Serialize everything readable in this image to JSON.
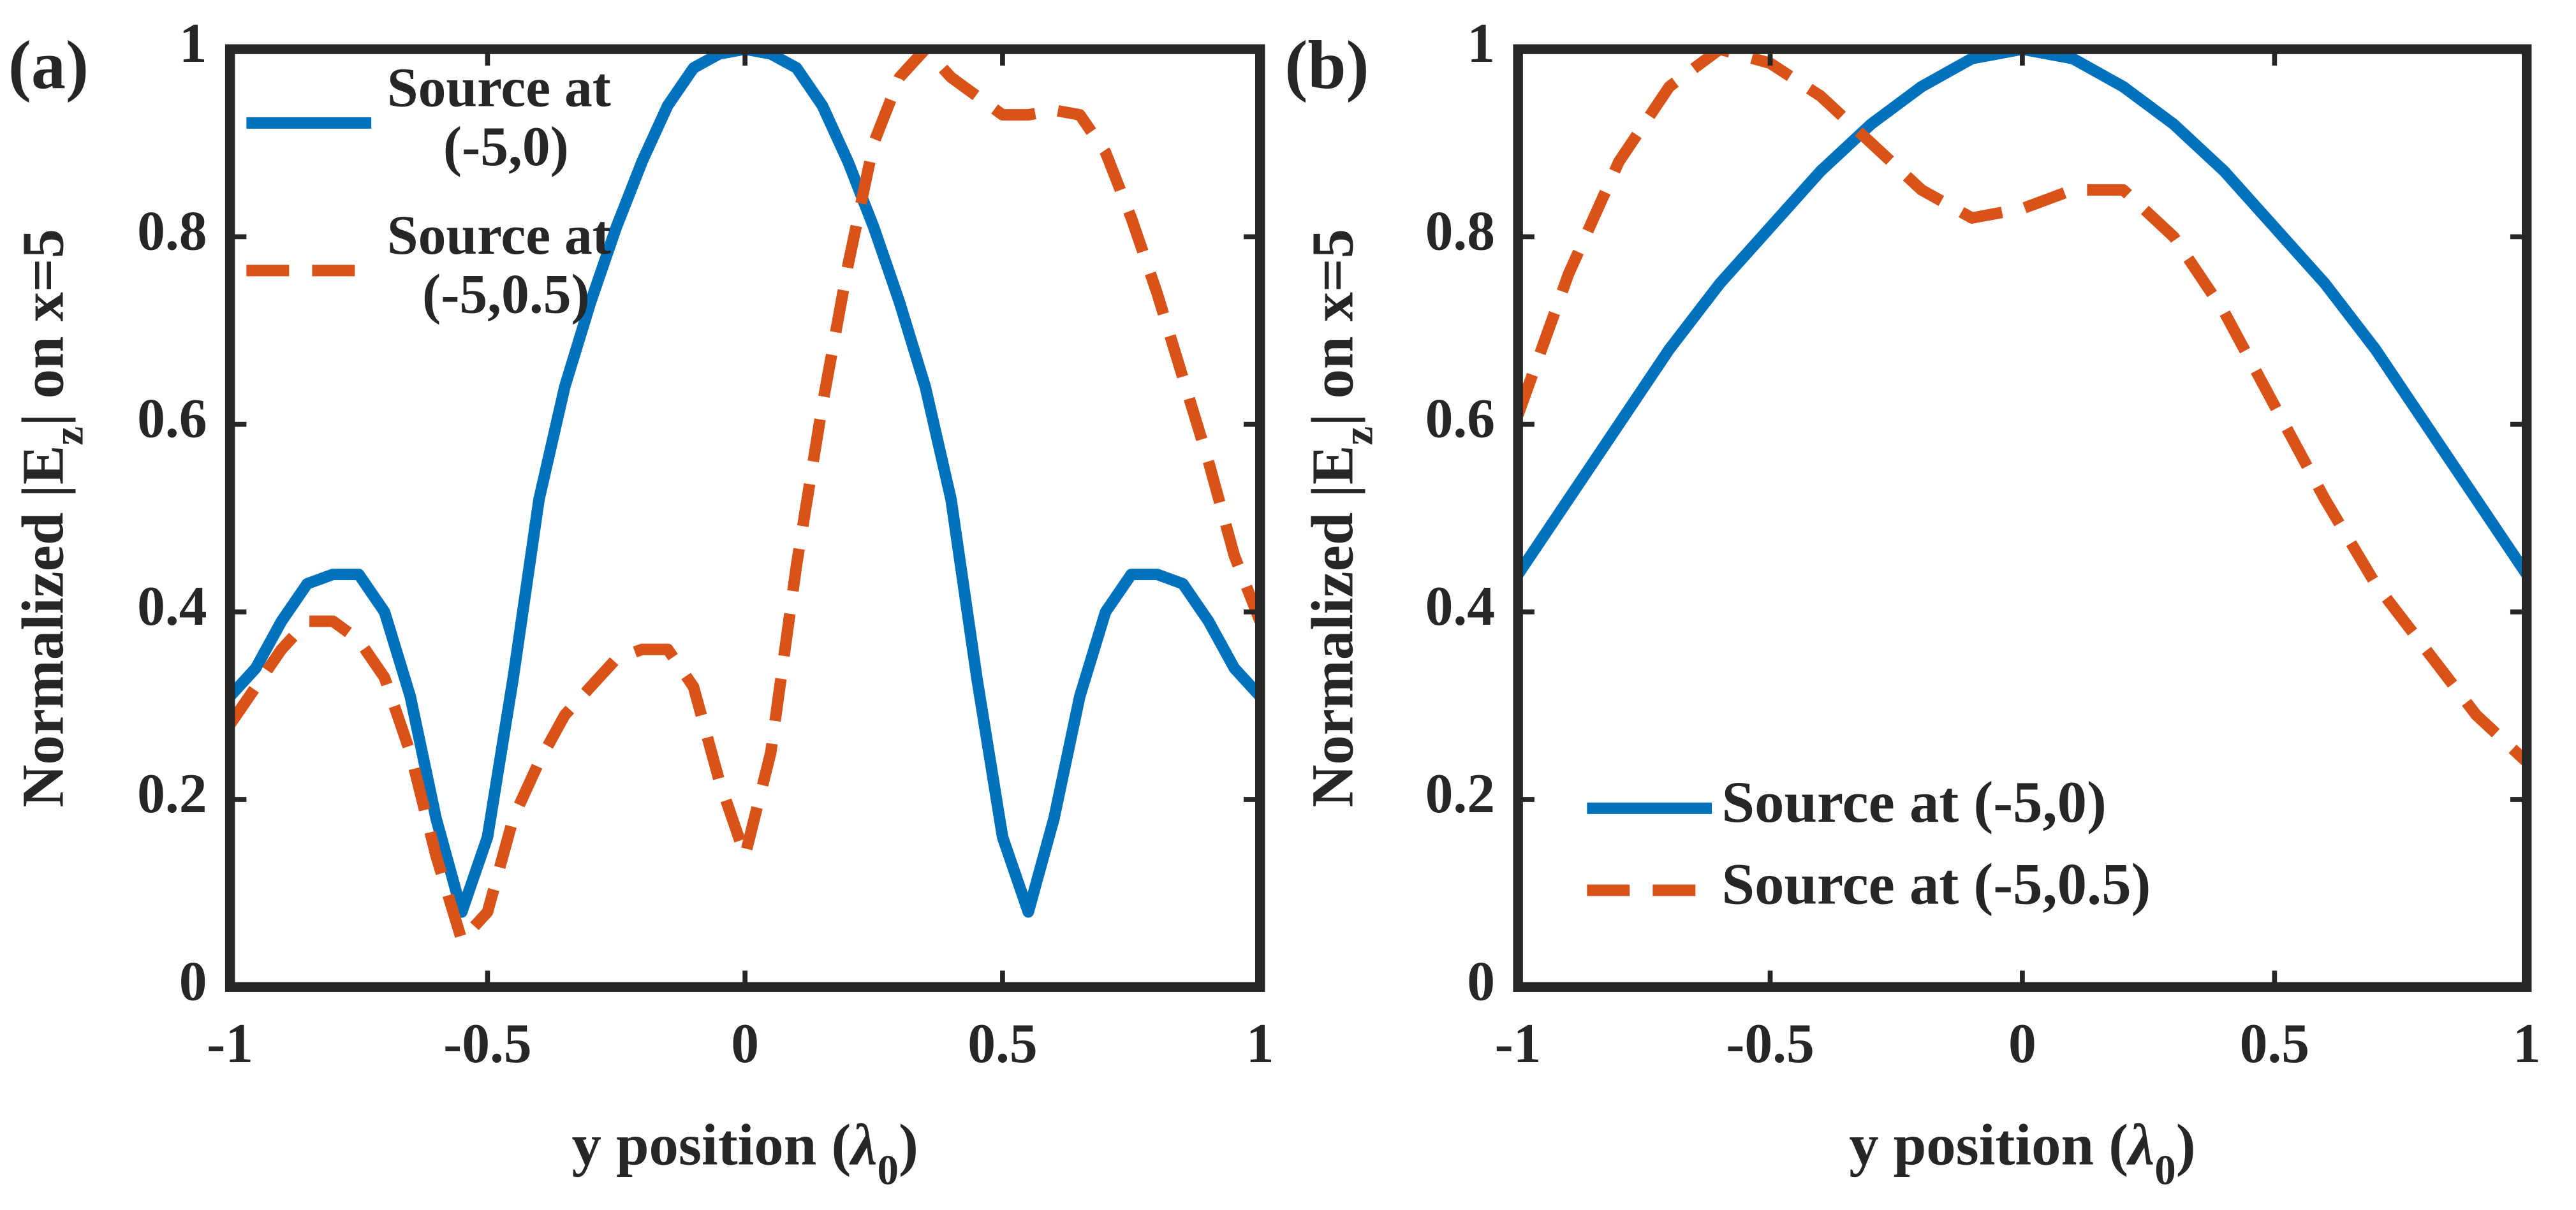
{
  "chart_data": [
    {
      "type": "line",
      "panel": "(a)",
      "ylabel": [
        "Normalized |E",
        "z",
        "| on x=5"
      ],
      "xlabel": [
        "y position (",
        "λ",
        "0",
        ")"
      ],
      "xlim": [
        -1,
        1
      ],
      "ylim": [
        0,
        1
      ],
      "xticks": [
        -1,
        -0.5,
        0,
        0.5,
        1
      ],
      "yticks": [
        0,
        0.2,
        0.4,
        0.6,
        0.8,
        1
      ],
      "legend": "upper left",
      "x": [
        -1,
        -0.95,
        -0.9,
        -0.85,
        -0.8,
        -0.75,
        -0.7,
        -0.65,
        -0.6,
        -0.55,
        -0.5,
        -0.45,
        -0.4,
        -0.35,
        -0.3,
        -0.25,
        -0.2,
        -0.15,
        -0.1,
        -0.05,
        0,
        0.05,
        0.1,
        0.15,
        0.2,
        0.25,
        0.3,
        0.35,
        0.4,
        0.45,
        0.5,
        0.55,
        0.6,
        0.65,
        0.7,
        0.75,
        0.8,
        0.85,
        0.9,
        0.95,
        1
      ],
      "series": [
        {
          "name": "Source at (-5,0)",
          "color": "#0072bd",
          "dash": false,
          "values": [
            0.31,
            0.34,
            0.39,
            0.43,
            0.44,
            0.44,
            0.4,
            0.31,
            0.18,
            0.08,
            0.16,
            0.33,
            0.52,
            0.64,
            0.73,
            0.81,
            0.88,
            0.94,
            0.98,
            0.995,
            1,
            0.995,
            0.98,
            0.94,
            0.88,
            0.81,
            0.73,
            0.64,
            0.52,
            0.33,
            0.16,
            0.08,
            0.18,
            0.31,
            0.4,
            0.44,
            0.44,
            0.43,
            0.39,
            0.34,
            0.31
          ]
        },
        {
          "name": "Source at (-5,0.5)",
          "color": "#d95319",
          "dash": true,
          "values": [
            0.28,
            0.32,
            0.36,
            0.39,
            0.39,
            0.37,
            0.33,
            0.25,
            0.14,
            0.05,
            0.08,
            0.18,
            0.24,
            0.29,
            0.32,
            0.35,
            0.36,
            0.36,
            0.32,
            0.22,
            0.14,
            0.25,
            0.45,
            0.62,
            0.77,
            0.9,
            0.97,
            1.0,
            0.97,
            0.95,
            0.93,
            0.93,
            0.935,
            0.93,
            0.89,
            0.82,
            0.74,
            0.65,
            0.56,
            0.46,
            0.39
          ]
        }
      ]
    },
    {
      "type": "line",
      "panel": "(b)",
      "ylabel": [
        "Normalized |E",
        "z",
        "| on x=5"
      ],
      "xlabel": [
        "y position (",
        "λ",
        "0",
        ")"
      ],
      "xlim": [
        -1,
        1
      ],
      "ylim": [
        0,
        1
      ],
      "xticks": [
        -1,
        -0.5,
        0,
        0.5,
        1
      ],
      "yticks": [
        0,
        0.2,
        0.4,
        0.6,
        0.8,
        1
      ],
      "legend": "lower left",
      "x": [
        -1,
        -0.9,
        -0.8,
        -0.7,
        -0.6,
        -0.5,
        -0.4,
        -0.3,
        -0.2,
        -0.1,
        0,
        0.1,
        0.2,
        0.3,
        0.4,
        0.5,
        0.6,
        0.7,
        0.8,
        0.9,
        1
      ],
      "series": [
        {
          "name": "Source at (-5,0)",
          "color": "#0072bd",
          "dash": false,
          "values": [
            0.44,
            0.52,
            0.6,
            0.68,
            0.75,
            0.81,
            0.87,
            0.92,
            0.96,
            0.99,
            1,
            0.99,
            0.96,
            0.92,
            0.87,
            0.81,
            0.75,
            0.68,
            0.6,
            0.52,
            0.44
          ]
        },
        {
          "name": "Source at (-5,0.5)",
          "color": "#d95319",
          "dash": true,
          "values": [
            0.61,
            0.76,
            0.88,
            0.96,
            1.0,
            0.985,
            0.95,
            0.9,
            0.85,
            0.82,
            0.83,
            0.85,
            0.85,
            0.8,
            0.72,
            0.62,
            0.52,
            0.43,
            0.36,
            0.29,
            0.24
          ]
        }
      ]
    }
  ]
}
